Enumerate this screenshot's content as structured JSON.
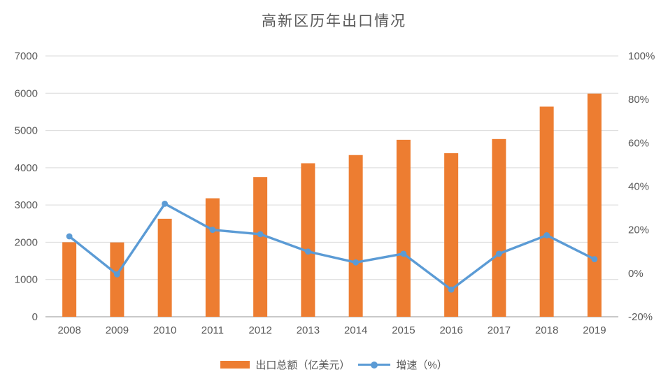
{
  "title": "高新区历年出口情况",
  "colors": {
    "bar": "#ED7D31",
    "line": "#5B9BD5",
    "grid": "#D9D9D9",
    "axis_line": "#C9C9C9",
    "text": "#595959",
    "background": "#FFFFFF"
  },
  "legend": {
    "bar_label": "出口总额（亿美元）",
    "line_label": "增速（%）"
  },
  "chart_data": {
    "type": "bar+line",
    "title": "高新区历年出口情况",
    "categories": [
      "2008",
      "2009",
      "2010",
      "2011",
      "2012",
      "2013",
      "2014",
      "2015",
      "2016",
      "2017",
      "2018",
      "2019"
    ],
    "series": [
      {
        "name": "出口总额（亿美元）",
        "type": "bar",
        "axis": "left",
        "color": "#ED7D31",
        "values": [
          2000,
          1995,
          2630,
          3180,
          3750,
          4120,
          4340,
          4750,
          4390,
          4770,
          5640,
          5990
        ]
      },
      {
        "name": "增速（%）",
        "type": "line",
        "axis": "right",
        "color": "#5B9BD5",
        "values": [
          17,
          -0.5,
          32,
          20,
          18,
          10,
          5,
          9,
          -7.5,
          9,
          17.5,
          6.5
        ]
      }
    ],
    "left_axis": {
      "min": 0,
      "max": 7000,
      "step": 1000,
      "ticks": [
        "0",
        "1000",
        "2000",
        "3000",
        "4000",
        "5000",
        "6000",
        "7000"
      ]
    },
    "right_axis": {
      "min": -20,
      "max": 100,
      "step": 20,
      "ticks": [
        "-20%",
        "0%",
        "20%",
        "40%",
        "60%",
        "80%",
        "100%"
      ]
    },
    "grid": true,
    "legend_position": "bottom"
  }
}
